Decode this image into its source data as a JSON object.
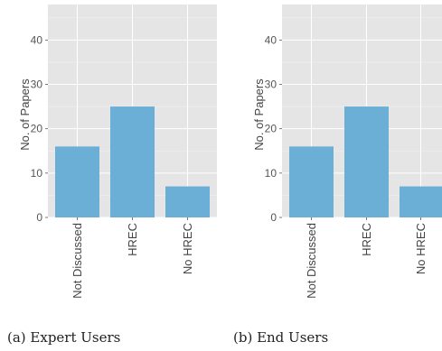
{
  "chart_data": [
    {
      "type": "bar",
      "categories": [
        "Not Discussed",
        "HREC",
        "No HREC"
      ],
      "values": [
        16,
        25,
        7
      ],
      "title": "",
      "xlabel": "",
      "ylabel": "No. of Papers",
      "ylim": [
        0,
        48
      ],
      "yticks": [
        0,
        10,
        20,
        30,
        40
      ],
      "grid": true,
      "bar_color": "#6baed6",
      "background_color": "#e5e5e5",
      "caption": "(a) Expert Users"
    },
    {
      "type": "bar",
      "categories": [
        "Not Discussed",
        "HREC",
        "No HREC"
      ],
      "values": [
        16,
        25,
        7
      ],
      "title": "",
      "xlabel": "",
      "ylabel": "No. of Papers",
      "ylim": [
        0,
        48
      ],
      "yticks": [
        0,
        10,
        20,
        30,
        40
      ],
      "grid": true,
      "bar_color": "#6baed6",
      "background_color": "#e5e5e5",
      "caption": "(b) End Users"
    }
  ]
}
